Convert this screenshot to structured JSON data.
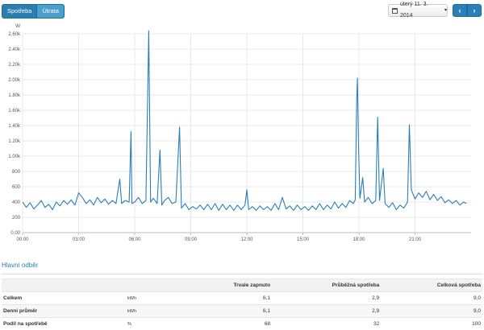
{
  "toolbar": {
    "tab_consumption": "Spotřeba",
    "tab_cost": "Útrata",
    "date_label": "úterý 11. 3. 2014",
    "prev_icon": "chevron-left-icon",
    "next_icon": "chevron-right-icon",
    "accent": "#2a7fb8"
  },
  "chart_data": {
    "type": "line",
    "ylabel": "W",
    "ylim": [
      0,
      2.6
    ],
    "yticks": [
      "0.00",
      "200",
      "400",
      "600",
      "800",
      "1.00k",
      "1.20k",
      "1.40k",
      "1.60k",
      "1.80k",
      "2.00k",
      "2.20k",
      "2.40k",
      "2.60k"
    ],
    "xticks": [
      "00:00",
      "03:00",
      "06:00",
      "09:00",
      "12:00",
      "15:00",
      "18:00",
      "21:00"
    ],
    "xlim": [
      0,
      24
    ],
    "grid": true,
    "series": [
      {
        "color": "#2a7fb8",
        "values": [
          [
            0.0,
            400
          ],
          [
            0.2,
            330
          ],
          [
            0.4,
            390
          ],
          [
            0.6,
            310
          ],
          [
            0.8,
            360
          ],
          [
            1.0,
            420
          ],
          [
            1.2,
            330
          ],
          [
            1.4,
            370
          ],
          [
            1.6,
            300
          ],
          [
            1.8,
            400
          ],
          [
            2.0,
            350
          ],
          [
            2.2,
            420
          ],
          [
            2.4,
            370
          ],
          [
            2.6,
            430
          ],
          [
            2.8,
            360
          ],
          [
            3.0,
            520
          ],
          [
            3.2,
            460
          ],
          [
            3.4,
            380
          ],
          [
            3.6,
            430
          ],
          [
            3.8,
            360
          ],
          [
            4.0,
            460
          ],
          [
            4.2,
            390
          ],
          [
            4.4,
            440
          ],
          [
            4.6,
            370
          ],
          [
            4.8,
            420
          ],
          [
            5.0,
            380
          ],
          [
            5.2,
            700
          ],
          [
            5.3,
            380
          ],
          [
            5.5,
            420
          ],
          [
            5.7,
            400
          ],
          [
            5.8,
            1320
          ],
          [
            5.85,
            380
          ],
          [
            6.0,
            400
          ],
          [
            6.2,
            460
          ],
          [
            6.4,
            380
          ],
          [
            6.6,
            420
          ],
          [
            6.75,
            2640
          ],
          [
            6.85,
            400
          ],
          [
            7.0,
            450
          ],
          [
            7.2,
            380
          ],
          [
            7.35,
            1080
          ],
          [
            7.45,
            360
          ],
          [
            7.6,
            420
          ],
          [
            7.8,
            460
          ],
          [
            8.0,
            380
          ],
          [
            8.2,
            400
          ],
          [
            8.4,
            1380
          ],
          [
            8.5,
            320
          ],
          [
            8.7,
            380
          ],
          [
            8.9,
            300
          ],
          [
            9.1,
            340
          ],
          [
            9.3,
            310
          ],
          [
            9.5,
            360
          ],
          [
            9.7,
            300
          ],
          [
            9.9,
            370
          ],
          [
            10.1,
            300
          ],
          [
            10.3,
            380
          ],
          [
            10.5,
            290
          ],
          [
            10.7,
            370
          ],
          [
            10.9,
            300
          ],
          [
            11.1,
            360
          ],
          [
            11.3,
            290
          ],
          [
            11.5,
            360
          ],
          [
            11.7,
            300
          ],
          [
            11.9,
            360
          ],
          [
            12.0,
            560
          ],
          [
            12.1,
            300
          ],
          [
            12.3,
            340
          ],
          [
            12.5,
            290
          ],
          [
            12.7,
            350
          ],
          [
            12.9,
            300
          ],
          [
            13.1,
            340
          ],
          [
            13.3,
            290
          ],
          [
            13.5,
            380
          ],
          [
            13.7,
            300
          ],
          [
            13.9,
            460
          ],
          [
            14.1,
            310
          ],
          [
            14.3,
            350
          ],
          [
            14.5,
            290
          ],
          [
            14.7,
            360
          ],
          [
            14.9,
            300
          ],
          [
            15.1,
            340
          ],
          [
            15.3,
            290
          ],
          [
            15.5,
            350
          ],
          [
            15.7,
            300
          ],
          [
            15.9,
            380
          ],
          [
            16.1,
            300
          ],
          [
            16.3,
            360
          ],
          [
            16.5,
            310
          ],
          [
            16.7,
            400
          ],
          [
            16.9,
            320
          ],
          [
            17.1,
            380
          ],
          [
            17.3,
            330
          ],
          [
            17.5,
            420
          ],
          [
            17.7,
            380
          ],
          [
            17.8,
            430
          ],
          [
            17.88,
            1740
          ],
          [
            17.92,
            2020
          ],
          [
            17.98,
            1100
          ],
          [
            18.05,
            450
          ],
          [
            18.2,
            720
          ],
          [
            18.3,
            400
          ],
          [
            18.5,
            460
          ],
          [
            18.7,
            380
          ],
          [
            18.9,
            420
          ],
          [
            19.0,
            1510
          ],
          [
            19.1,
            420
          ],
          [
            19.3,
            840
          ],
          [
            19.4,
            380
          ],
          [
            19.6,
            330
          ],
          [
            19.8,
            390
          ],
          [
            20.0,
            300
          ],
          [
            20.2,
            360
          ],
          [
            20.4,
            320
          ],
          [
            20.6,
            400
          ],
          [
            20.7,
            1410
          ],
          [
            20.8,
            560
          ],
          [
            21.0,
            440
          ],
          [
            21.2,
            520
          ],
          [
            21.4,
            460
          ],
          [
            21.6,
            540
          ],
          [
            21.8,
            430
          ],
          [
            22.0,
            500
          ],
          [
            22.2,
            420
          ],
          [
            22.4,
            470
          ],
          [
            22.6,
            390
          ],
          [
            22.8,
            430
          ],
          [
            23.0,
            380
          ],
          [
            23.2,
            420
          ],
          [
            23.4,
            360
          ],
          [
            23.6,
            400
          ],
          [
            23.75,
            380
          ]
        ]
      }
    ]
  },
  "summary": {
    "title": "Hlavní odběr",
    "columns": [
      "Trvale zapnuto",
      "Průběžná spotřeba",
      "Celková spotřeba"
    ],
    "rows": [
      {
        "label": "Celkem",
        "unit": "kWh",
        "v1": "6,1",
        "v2": "2,9",
        "v3": "9,0"
      },
      {
        "label": "Denní průměr",
        "unit": "kWh",
        "v1": "6,1",
        "v2": "2,9",
        "v3": "9,0"
      },
      {
        "label": "Podíl na spotřebě",
        "unit": "%",
        "v1": "68",
        "v2": "32",
        "v3": "100"
      }
    ]
  }
}
